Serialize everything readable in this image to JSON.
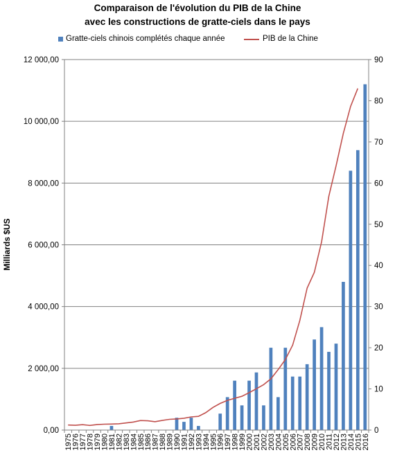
{
  "title_line1": "Comparaison de l'évolution du PIB de la Chine",
  "title_line2": "avec les constructions de gratte-ciels  dans le pays",
  "legend": {
    "bars": "Gratte-ciels chinois complétés chaque année",
    "line": "PIB de la Chine"
  },
  "colors": {
    "bars": "#4f81bd",
    "line": "#c0504d",
    "grid": "#808080"
  },
  "chart_data": {
    "type": "bar+line",
    "title": "Comparaison de l'évolution du PIB de la Chine avec les constructions de gratte-ciels  dans le pays",
    "ylabel": "Milliards $US",
    "ylim_left": [
      0,
      12000
    ],
    "ylim_right": [
      0,
      90
    ],
    "left_ticks": [
      "0,00",
      "2 000,00",
      "4 000,00",
      "6 000,00",
      "8 000,00",
      "10 000,00",
      "12 000,00"
    ],
    "right_ticks": [
      "0",
      "10",
      "20",
      "30",
      "40",
      "50",
      "60",
      "70",
      "80",
      "90"
    ],
    "grid": true,
    "legend_position": "top",
    "categories": [
      "1975",
      "1976",
      "1977",
      "1978",
      "1979",
      "1980",
      "1981",
      "1982",
      "1983",
      "1984",
      "1985",
      "1986",
      "1987",
      "1988",
      "1989",
      "1990",
      "1991",
      "1992",
      "1993",
      "1994",
      "1995",
      "1996",
      "1997",
      "1998",
      "1999",
      "2000",
      "2001",
      "2002",
      "2003",
      "2004",
      "2005",
      "2006",
      "2007",
      "2008",
      "2009",
      "2010",
      "2011",
      "2012",
      "2013",
      "2014",
      "2015",
      "2016"
    ],
    "series": [
      {
        "name": "Gratte-ciels chinois complétés chaque année",
        "kind": "bar",
        "axis": "right",
        "values": [
          0,
          0,
          0,
          0,
          0,
          0,
          1,
          0,
          0,
          0,
          0,
          0,
          0,
          0,
          0,
          3,
          2,
          3,
          1,
          0,
          0,
          4,
          8,
          12,
          6,
          12,
          14,
          6,
          20,
          8,
          20,
          13,
          13,
          16,
          22,
          25,
          19,
          21,
          36,
          63,
          68,
          84
        ]
      },
      {
        "name": "PIB de la Chine",
        "kind": "line",
        "axis": "left",
        "values": [
          163,
          154,
          175,
          150,
          178,
          191,
          196,
          205,
          230,
          260,
          310,
          300,
          272,
          312,
          348,
          361,
          383,
          427,
          445,
          564,
          734,
          864,
          962,
          1029,
          1094,
          1211,
          1339,
          1471,
          1660,
          1955,
          2286,
          2752,
          3552,
          4598,
          5110,
          6101,
          7573,
          8561,
          9607,
          10482,
          11065,
          null
        ]
      }
    ]
  }
}
